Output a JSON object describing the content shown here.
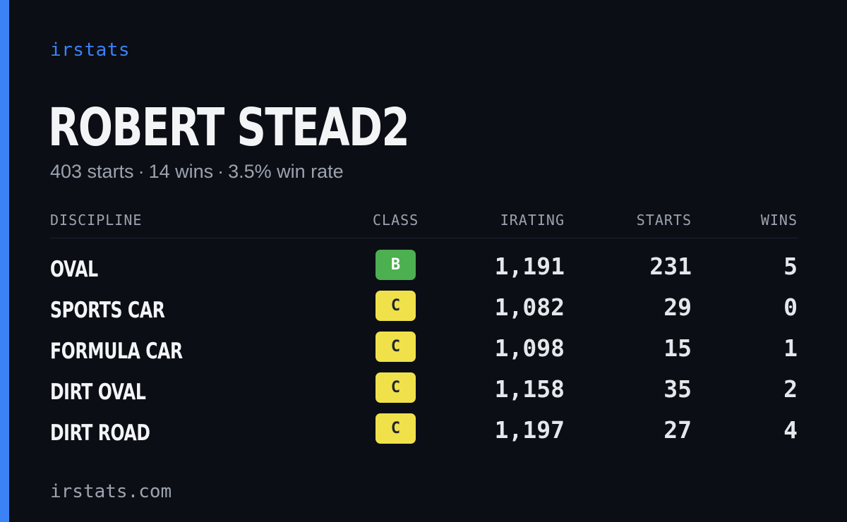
{
  "brand": "irstats",
  "driver": {
    "name": "ROBERT STEAD2",
    "starts_text": "403 starts",
    "wins_text": "14 wins",
    "win_rate_text": "3.5% win rate",
    "separator": "·"
  },
  "table": {
    "headers": {
      "discipline": "DISCIPLINE",
      "class": "CLASS",
      "irating": "IRATING",
      "starts": "STARTS",
      "wins": "WINS"
    },
    "rows": [
      {
        "discipline": "OVAL",
        "class": "B",
        "class_color": "#4caf50",
        "class_text_color": "#ffffff",
        "irating": "1,191",
        "starts": "231",
        "wins": "5"
      },
      {
        "discipline": "SPORTS CAR",
        "class": "C",
        "class_color": "#f0e14a",
        "class_text_color": "#1f2430",
        "irating": "1,082",
        "starts": "29",
        "wins": "0"
      },
      {
        "discipline": "FORMULA CAR",
        "class": "C",
        "class_color": "#f0e14a",
        "class_text_color": "#1f2430",
        "irating": "1,098",
        "starts": "15",
        "wins": "1"
      },
      {
        "discipline": "DIRT OVAL",
        "class": "C",
        "class_color": "#f0e14a",
        "class_text_color": "#1f2430",
        "irating": "1,158",
        "starts": "35",
        "wins": "2"
      },
      {
        "discipline": "DIRT ROAD",
        "class": "C",
        "class_color": "#f0e14a",
        "class_text_color": "#1f2430",
        "irating": "1,197",
        "starts": "27",
        "wins": "4"
      }
    ]
  },
  "footer": "irstats.com",
  "colors": {
    "background": "#0b0e15",
    "accent": "#3b82f6",
    "text_primary": "#f3f4f6",
    "text_muted": "#9ca3af"
  }
}
